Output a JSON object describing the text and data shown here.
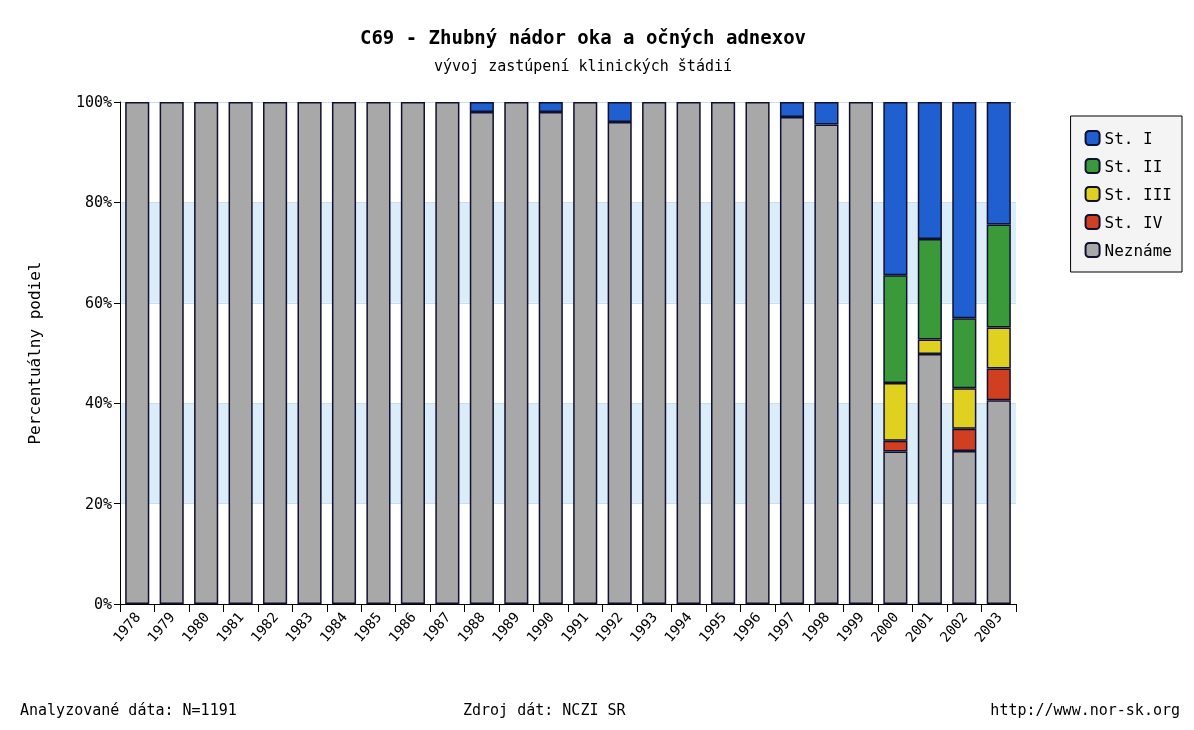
{
  "chart_data": {
    "type": "bar",
    "stacked": true,
    "title": "C69 - Zhubný nádor oka a očných adnexov",
    "subtitle": "vývoj zastúpení klinických štádií",
    "ylabel": "Percentuálny podiel",
    "categories": [
      "1978",
      "1979",
      "1980",
      "1981",
      "1982",
      "1983",
      "1984",
      "1985",
      "1986",
      "1987",
      "1988",
      "1989",
      "1990",
      "1991",
      "1992",
      "1993",
      "1994",
      "1995",
      "1996",
      "1997",
      "1998",
      "1999",
      "2000",
      "2001",
      "2002",
      "2003"
    ],
    "series": [
      {
        "name": "Neznáme",
        "color": "#a8a8a8",
        "values": [
          100,
          100,
          100,
          100,
          100,
          100,
          100,
          100,
          100,
          100,
          98,
          100,
          98,
          100,
          96,
          100,
          100,
          100,
          100,
          97,
          95.5,
          100,
          30.4,
          49.8,
          30.5,
          40.6
        ]
      },
      {
        "name": "St. IV",
        "color": "#d04020",
        "values": [
          null,
          null,
          null,
          null,
          null,
          null,
          null,
          null,
          null,
          null,
          null,
          null,
          null,
          null,
          null,
          null,
          null,
          null,
          null,
          null,
          null,
          null,
          2.1,
          null,
          4.4,
          6.3
        ]
      },
      {
        "name": "St. III",
        "color": "#e0d020",
        "values": [
          null,
          null,
          null,
          null,
          null,
          null,
          null,
          null,
          null,
          null,
          null,
          null,
          null,
          null,
          null,
          null,
          null,
          null,
          null,
          null,
          null,
          null,
          11.5,
          2.9,
          8.1,
          8.2
        ]
      },
      {
        "name": "St. II",
        "color": "#3a9a3a",
        "values": [
          null,
          null,
          null,
          null,
          null,
          null,
          null,
          null,
          null,
          null,
          null,
          null,
          null,
          null,
          null,
          null,
          null,
          null,
          null,
          null,
          null,
          null,
          21.5,
          20,
          13.9,
          20.5
        ]
      },
      {
        "name": "St. I",
        "color": "#1f5fd0",
        "values": [
          null,
          null,
          null,
          null,
          null,
          null,
          null,
          null,
          null,
          null,
          2,
          null,
          2,
          null,
          4,
          null,
          null,
          null,
          null,
          3,
          4.5,
          null,
          34.5,
          27.3,
          43.1,
          24.4
        ]
      }
    ],
    "ylim": [
      0,
      100
    ],
    "yticks": [
      {
        "value": 0,
        "label": "0%"
      },
      {
        "value": 20,
        "label": "20%"
      },
      {
        "value": 40,
        "label": "40%"
      },
      {
        "value": 60,
        "label": "60%"
      },
      {
        "value": 80,
        "label": "80%"
      },
      {
        "value": 100,
        "label": "100%"
      }
    ],
    "grid": "y",
    "legend": "top right",
    "annotations": [
      "Analyzované dáta: N=1191",
      "Zdroj dát: NCZI SR",
      "http://www.nor-sk.org"
    ]
  }
}
